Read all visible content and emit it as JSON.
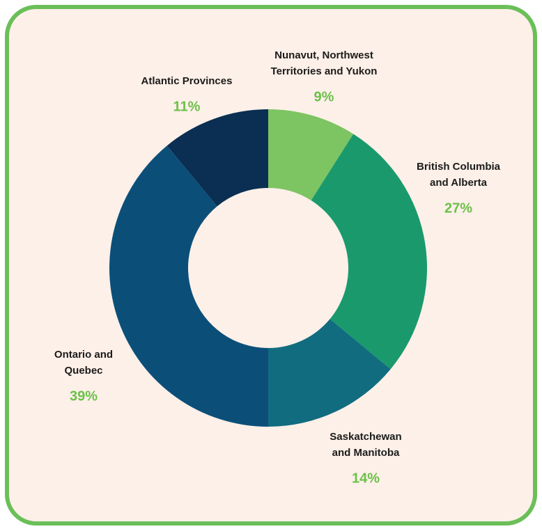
{
  "chart_data": {
    "type": "donut",
    "categories": [
      [
        "Nunavut, Northwest",
        "Territories and Yukon"
      ],
      [
        "British Columbia",
        "and Alberta"
      ],
      [
        "Saskatchewan",
        "and Manitoba"
      ],
      [
        "Ontario and",
        "Quebec"
      ],
      [
        "Atlantic Provinces"
      ]
    ],
    "values": [
      9,
      27,
      14,
      39,
      11
    ],
    "value_labels": [
      "9%",
      "27%",
      "14%",
      "39%",
      "11%"
    ],
    "colors": [
      "#7dc462",
      "#1a9a6c",
      "#116c80",
      "#0b4f79",
      "#0a2f52"
    ]
  }
}
